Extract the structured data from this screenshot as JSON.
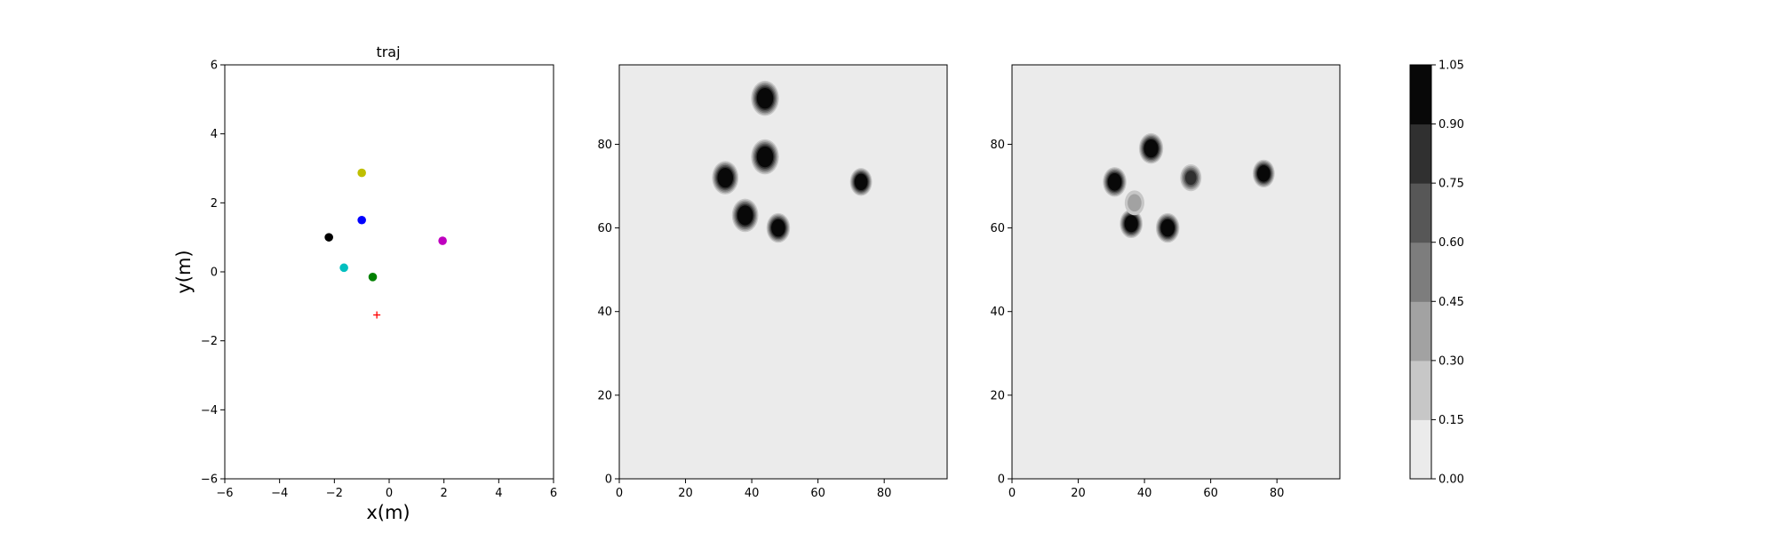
{
  "chart_data": [
    {
      "type": "scatter",
      "title": "traj",
      "xlabel": "x(m)",
      "ylabel": "y(m)",
      "xlim": [
        -6,
        6
      ],
      "ylim": [
        -6,
        6
      ],
      "xticks": [
        "−6",
        "−4",
        "−2",
        "0",
        "2",
        "4",
        "6"
      ],
      "yticks": [
        "−6",
        "−4",
        "−2",
        "0",
        "2",
        "4",
        "6"
      ],
      "grid": false,
      "series": [
        {
          "color": "#bfbf00",
          "marker": "circle",
          "points": [
            [
              -1.0,
              2.87
            ]
          ]
        },
        {
          "color": "#0000ff",
          "marker": "circle",
          "points": [
            [
              -1.0,
              1.5
            ]
          ]
        },
        {
          "color": "#000000",
          "marker": "circle",
          "points": [
            [
              -2.2,
              1.0
            ]
          ]
        },
        {
          "color": "#bf00bf",
          "marker": "circle",
          "points": [
            [
              1.95,
              0.9
            ]
          ]
        },
        {
          "color": "#00bfbf",
          "marker": "circle",
          "points": [
            [
              -1.65,
              0.12
            ]
          ]
        },
        {
          "color": "#008000",
          "marker": "circle",
          "points": [
            [
              -0.6,
              -0.15
            ]
          ]
        },
        {
          "color": "#ff0000",
          "marker": "plus",
          "points": [
            [
              -0.45,
              -1.25
            ]
          ]
        }
      ]
    },
    {
      "type": "heatmap",
      "title": "",
      "xlim": [
        0,
        99
      ],
      "ylim": [
        0,
        99
      ],
      "xticks": [
        "0",
        "20",
        "40",
        "60",
        "80"
      ],
      "yticks": [
        "0",
        "20",
        "40",
        "60",
        "80"
      ],
      "grid": false,
      "background_level": 0.0,
      "blobs": [
        {
          "x": 44,
          "y": 91,
          "r": 3.8,
          "peak": 1.05
        },
        {
          "x": 44,
          "y": 77,
          "r": 3.8,
          "peak": 1.05
        },
        {
          "x": 32,
          "y": 72,
          "r": 3.6,
          "peak": 1.05
        },
        {
          "x": 38,
          "y": 63,
          "r": 3.6,
          "peak": 1.05
        },
        {
          "x": 48,
          "y": 60,
          "r": 3.2,
          "peak": 1.05
        },
        {
          "x": 73,
          "y": 71,
          "r": 3.0,
          "peak": 1.05
        }
      ]
    },
    {
      "type": "heatmap",
      "title": "",
      "xlim": [
        0,
        99
      ],
      "ylim": [
        0,
        99
      ],
      "xticks": [
        "0",
        "20",
        "40",
        "60",
        "80"
      ],
      "yticks": [
        "0",
        "20",
        "40",
        "60",
        "80"
      ],
      "grid": false,
      "background_level": 0.0,
      "blobs": [
        {
          "x": 31,
          "y": 71,
          "r": 3.2,
          "peak": 1.05
        },
        {
          "x": 42,
          "y": 79,
          "r": 3.3,
          "peak": 1.05
        },
        {
          "x": 36,
          "y": 61,
          "r": 3.1,
          "peak": 1.05
        },
        {
          "x": 47,
          "y": 60,
          "r": 3.2,
          "peak": 1.05
        },
        {
          "x": 54,
          "y": 72,
          "r": 3.0,
          "peak": 0.75
        },
        {
          "x": 76,
          "y": 73,
          "r": 3.0,
          "peak": 1.05
        },
        {
          "x": 37,
          "y": 66,
          "r": 3.2,
          "peak": 0.35
        }
      ]
    }
  ],
  "colorbar": {
    "levels": [
      0.0,
      0.15,
      0.3,
      0.45,
      0.6,
      0.75,
      0.9,
      1.05
    ],
    "labels": [
      "0.00",
      "0.15",
      "0.30",
      "0.45",
      "0.60",
      "0.75",
      "0.90",
      "1.05"
    ],
    "colors": [
      "#ebebeb",
      "#c7c7c7",
      "#a2a2a2",
      "#7d7d7d",
      "#575757",
      "#303030",
      "#080808"
    ]
  }
}
